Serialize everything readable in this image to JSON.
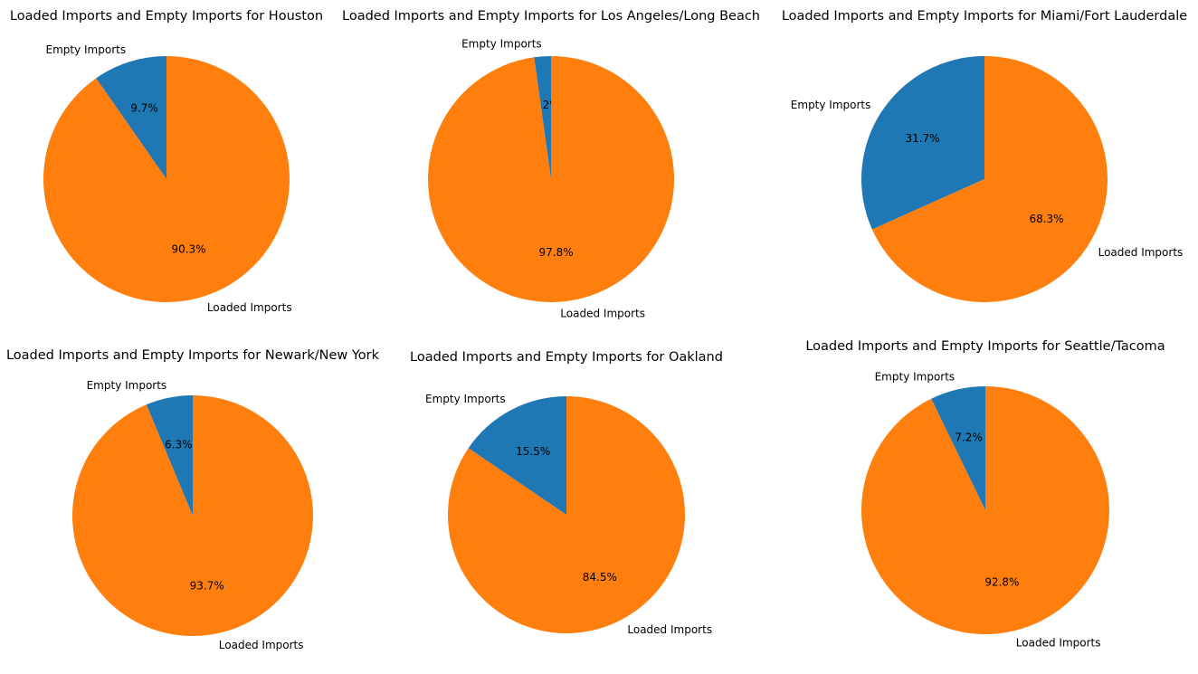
{
  "colors": {
    "empty": "#1f77b4",
    "loaded": "#ff7f0e"
  },
  "chart_data": [
    {
      "type": "pie",
      "title": "Loaded Imports and Empty Imports for Houston",
      "labels": [
        "Empty Imports",
        "Loaded Imports"
      ],
      "values": [
        9.7,
        90.3
      ],
      "autopct": [
        "9.7%",
        "90.3%"
      ]
    },
    {
      "type": "pie",
      "title": "Loaded Imports and Empty Imports for Los Angeles/Long Beach",
      "labels": [
        "Empty Imports",
        "Loaded Imports"
      ],
      "values": [
        2.2,
        97.8
      ],
      "autopct": [
        "2.2%",
        "97.8%"
      ]
    },
    {
      "type": "pie",
      "title": "Loaded Imports and Empty Imports for Miami/Fort Lauderdale",
      "labels": [
        "Empty Imports",
        "Loaded Imports"
      ],
      "values": [
        31.7,
        68.3
      ],
      "autopct": [
        "31.7%",
        "68.3%"
      ]
    },
    {
      "type": "pie",
      "title": "Loaded Imports and Empty Imports for Newark/New York",
      "labels": [
        "Empty Imports",
        "Loaded Imports"
      ],
      "values": [
        6.3,
        93.7
      ],
      "autopct": [
        "6.3%",
        "93.7%"
      ]
    },
    {
      "type": "pie",
      "title": "Loaded Imports and Empty Imports for Oakland",
      "labels": [
        "Empty Imports",
        "Loaded Imports"
      ],
      "values": [
        15.5,
        84.5
      ],
      "autopct": [
        "15.5%",
        "84.5%"
      ]
    },
    {
      "type": "pie",
      "title": "Loaded Imports and Empty Imports for Seattle/Tacoma",
      "labels": [
        "Empty Imports",
        "Loaded Imports"
      ],
      "values": [
        7.2,
        92.8
      ],
      "autopct": [
        "7.2%",
        "92.8%"
      ]
    }
  ]
}
